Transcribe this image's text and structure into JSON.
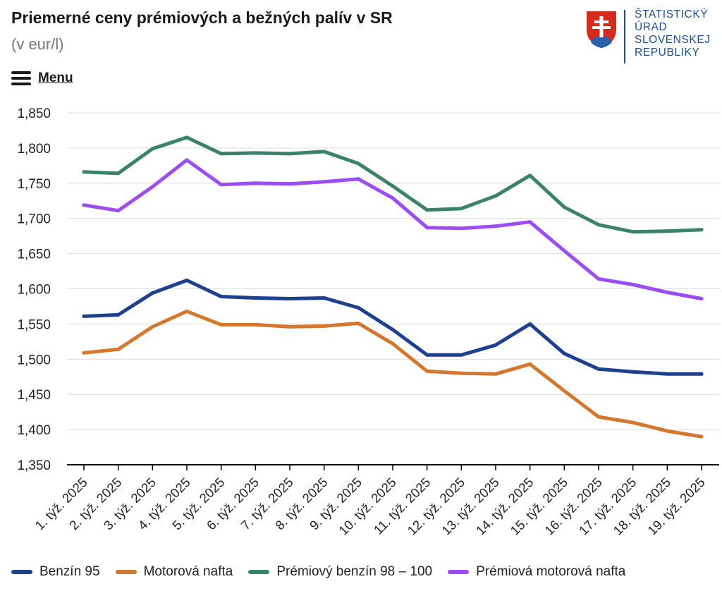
{
  "header": {
    "title": "Priemerné ceny prémiových a bežných palív v SR",
    "subtitle": "(v eur/l)",
    "menu_label": "Menu"
  },
  "logo": {
    "lines": [
      "ŠTATISTICKÝ",
      "ÚRAD",
      "SLOVENSKEJ",
      "REPUBLIKY"
    ],
    "color": "#1f4e8c"
  },
  "chart_data": {
    "type": "line",
    "categories": [
      "1. týž. 2025",
      "2. týž. 2025",
      "3. týž. 2025",
      "4. týž. 2025",
      "5. týž. 2025",
      "6. týž. 2025",
      "7. týž. 2025",
      "8. týž. 2025",
      "9. týž. 2025",
      "10. týž. 2025",
      "11. týž. 2025",
      "12. týž. 2025",
      "13. týž. 2025",
      "14. týž. 2025",
      "15. týž. 2025",
      "16. týž. 2025",
      "17. týž. 2025",
      "18. týž. 2025",
      "19. týž. 2025"
    ],
    "ylim": [
      1.35,
      1.85
    ],
    "yticks": [
      "1,350",
      "1,400",
      "1,450",
      "1,500",
      "1,550",
      "1,600",
      "1,650",
      "1,700",
      "1,750",
      "1,800",
      "1,850"
    ],
    "ytick_values": [
      1.35,
      1.4,
      1.45,
      1.5,
      1.55,
      1.6,
      1.65,
      1.7,
      1.75,
      1.8,
      1.85
    ],
    "grid": true,
    "legend_position": "bottom",
    "series": [
      {
        "name": "Benzín 95",
        "color": "#1f3f8f",
        "values": [
          1.561,
          1.563,
          1.594,
          1.612,
          1.589,
          1.587,
          1.586,
          1.587,
          1.573,
          1.542,
          1.506,
          1.506,
          1.52,
          1.55,
          1.508,
          1.486,
          1.482,
          1.479,
          1.479
        ]
      },
      {
        "name": "Motorová nafta",
        "color": "#d4772f",
        "values": [
          1.509,
          1.514,
          1.546,
          1.568,
          1.549,
          1.549,
          1.546,
          1.547,
          1.551,
          1.522,
          1.483,
          1.48,
          1.479,
          1.493,
          1.455,
          1.418,
          1.41,
          1.398,
          1.39
        ]
      },
      {
        "name": "Prémiový benzín 98 – 100",
        "color": "#3b8366",
        "values": [
          1.766,
          1.764,
          1.799,
          1.815,
          1.792,
          1.793,
          1.792,
          1.795,
          1.778,
          1.746,
          1.712,
          1.714,
          1.732,
          1.761,
          1.716,
          1.691,
          1.681,
          1.682,
          1.684
        ]
      },
      {
        "name": "Prémiová motorová nafta",
        "color": "#9b4cf2",
        "values": [
          1.719,
          1.711,
          1.745,
          1.783,
          1.748,
          1.75,
          1.749,
          1.752,
          1.756,
          1.729,
          1.687,
          1.686,
          1.689,
          1.695,
          1.654,
          1.614,
          1.606,
          1.595,
          1.586
        ]
      }
    ]
  }
}
